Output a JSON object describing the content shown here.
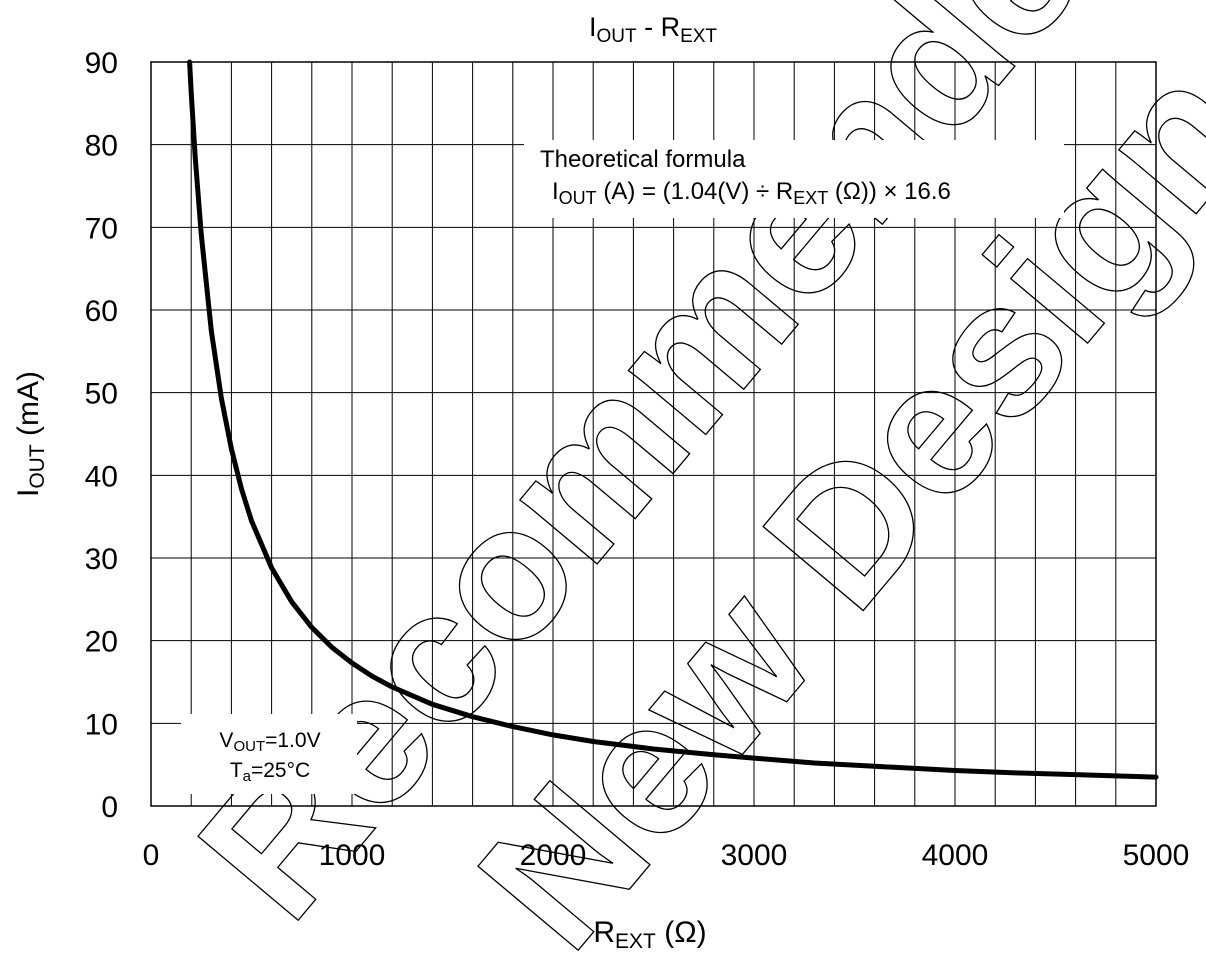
{
  "chart_data": {
    "type": "line",
    "title": {
      "main": "I",
      "sub": "OUT",
      "mid": " - R",
      "sub2": "EXT"
    },
    "xlabel": {
      "main": "R",
      "sub": "EXT",
      "rest": " (Ω)"
    },
    "ylabel": {
      "main": "I",
      "sub": "OUT",
      "rest": " (mA)"
    },
    "xlim": [
      0,
      5000
    ],
    "ylim": [
      0,
      90
    ],
    "x_ticks": [
      "0",
      "1000",
      "2000",
      "3000",
      "4000",
      "5000"
    ],
    "y_ticks": [
      "0",
      "10",
      "20",
      "30",
      "40",
      "50",
      "60",
      "70",
      "80",
      "90"
    ],
    "grid": true,
    "series": [
      {
        "x": [
          192,
          200,
          220,
          250,
          300,
          350,
          400,
          450,
          500,
          600,
          700,
          800,
          900,
          1000,
          1100,
          1200,
          1400,
          1600,
          1800,
          2000,
          2200,
          2500,
          2800,
          3000,
          3300,
          3600,
          4000,
          4300,
          4600,
          5000
        ],
        "y": [
          90,
          86.3,
          78.5,
          69.1,
          57.5,
          49.3,
          43.2,
          38.4,
          34.5,
          28.8,
          24.7,
          21.6,
          19.2,
          17.3,
          15.7,
          14.4,
          12.3,
          10.8,
          9.6,
          8.6,
          7.8,
          6.9,
          6.2,
          5.8,
          5.2,
          4.8,
          4.3,
          4.0,
          3.8,
          3.5
        ]
      }
    ],
    "annotations": {
      "formula_title": "Theoretical formula",
      "formula": {
        "i": "I",
        "i_sub": "OUT",
        "mid": " (A) = (1.04(V) ÷ R",
        "r_sub": "EXT",
        "end": " (Ω)) × 16.6"
      },
      "conditions": {
        "v": "V",
        "v_sub": "OUT",
        "v_val": "=1.0V",
        "t": "T",
        "t_sub": "a",
        "t_val": "=25°C"
      }
    }
  },
  "watermark": "Recommended New Design"
}
